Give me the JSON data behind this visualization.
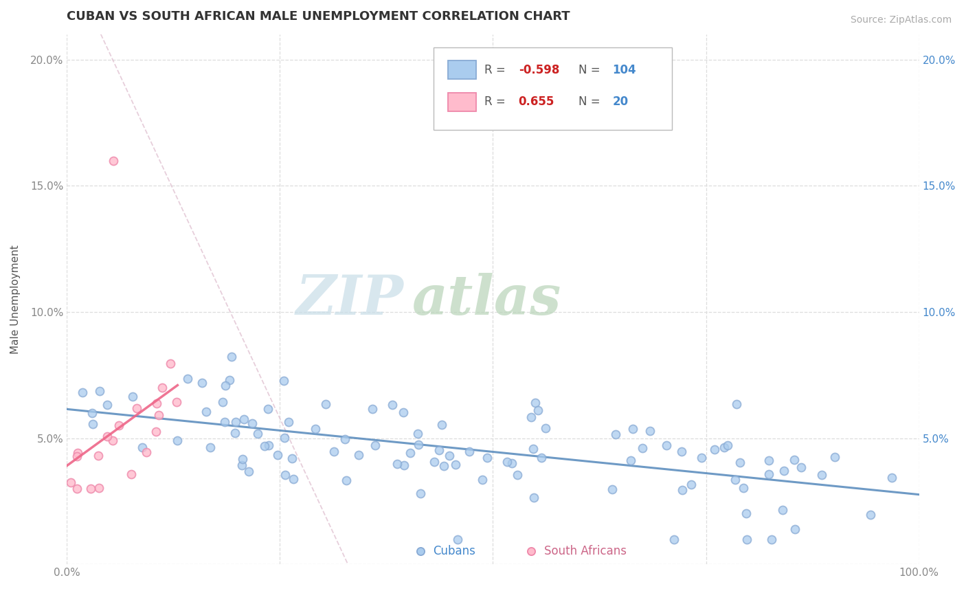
{
  "title": "CUBAN VS SOUTH AFRICAN MALE UNEMPLOYMENT CORRELATION CHART",
  "source_text": "Source: ZipAtlas.com",
  "ylabel": "Male Unemployment",
  "watermark_zip": "ZIP",
  "watermark_atlas": "atlas",
  "background_color": "#ffffff",
  "grid_color": "#dddddd",
  "cubans_R": -0.598,
  "cubans_N": 104,
  "southafrican_R": 0.655,
  "southafrican_N": 20,
  "cuban_color": "#aaccee",
  "cuban_edge_color": "#88aad4",
  "southafrican_color": "#ffbbcc",
  "southafrican_edge_color": "#ee88aa",
  "cuban_trend_color": "#5588bb",
  "sa_trend_color": "#ee6688",
  "xmin": 0.0,
  "xmax": 1.0,
  "ymin": 0.0,
  "ymax": 0.21,
  "yticks": [
    0.0,
    0.05,
    0.1,
    0.15,
    0.2
  ],
  "ytick_labels_left": [
    "",
    "5.0%",
    "10.0%",
    "15.0%",
    "20.0%"
  ],
  "ytick_labels_right": [
    "",
    "5.0%",
    "10.0%",
    "15.0%",
    "20.0%"
  ],
  "xticks": [
    0.0,
    0.25,
    0.5,
    0.75,
    1.0
  ],
  "xtick_labels": [
    "0.0%",
    "",
    "",
    "",
    "100.0%"
  ],
  "legend_cuban_color": "#aaccee",
  "legend_sa_color": "#ffbbcc",
  "legend_cuban_edge": "#88aad4",
  "legend_sa_edge": "#ee88aa",
  "right_tick_color": "#4488cc",
  "tick_label_color": "#888888"
}
